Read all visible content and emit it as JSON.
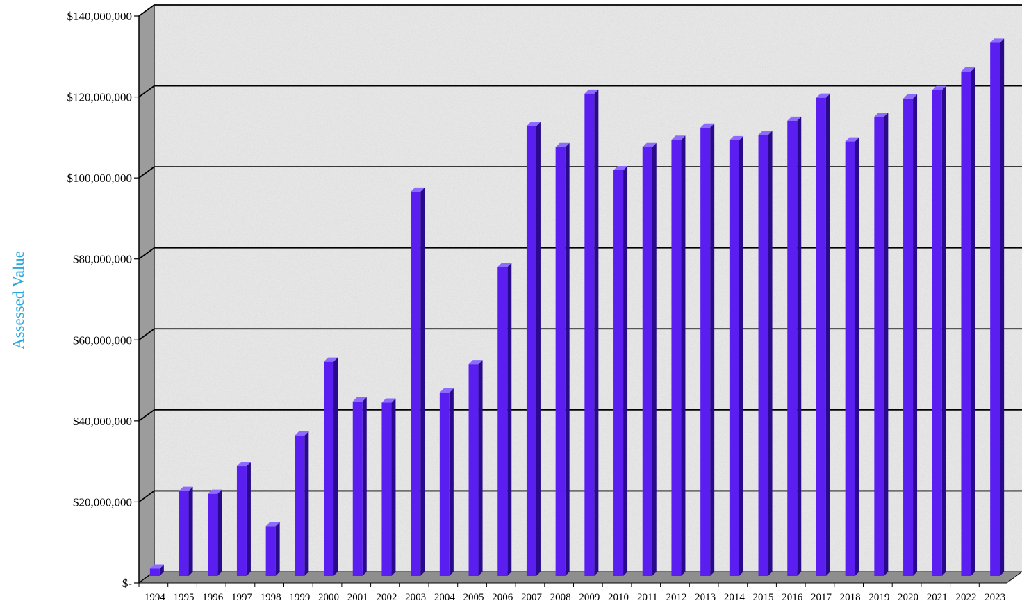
{
  "chart_data": {
    "type": "bar",
    "title": "",
    "xlabel": "",
    "ylabel": "Assessed Value",
    "ylim": [
      0,
      140000000
    ],
    "yticks": [
      {
        "value": 0,
        "label": "$-"
      },
      {
        "value": 20000000,
        "label": "$20,000,000"
      },
      {
        "value": 40000000,
        "label": "$40,000,000"
      },
      {
        "value": 60000000,
        "label": "$60,000,000"
      },
      {
        "value": 80000000,
        "label": "$80,000,000"
      },
      {
        "value": 100000000,
        "label": "$100,000,000"
      },
      {
        "value": 120000000,
        "label": "$120,000,000"
      },
      {
        "value": 140000000,
        "label": "$140,000,000"
      }
    ],
    "grid": true,
    "legend": "none",
    "categories": [
      "1994",
      "1995",
      "1996",
      "1997",
      "1998",
      "1999",
      "2000",
      "2001",
      "2002",
      "2003",
      "2004",
      "2005",
      "2006",
      "2007",
      "2008",
      "2009",
      "2010",
      "2011",
      "2012",
      "2013",
      "2014",
      "2015",
      "2016",
      "2017",
      "2018",
      "2019",
      "2020",
      "2021",
      "2022",
      "2023"
    ],
    "values": [
      1800000,
      21000000,
      20300000,
      27100000,
      12300000,
      34700000,
      52900000,
      43100000,
      42800000,
      94900000,
      45300000,
      52300000,
      76300000,
      111100000,
      105900000,
      119100000,
      100200000,
      105900000,
      107700000,
      110700000,
      107600000,
      108900000,
      112400000,
      118100000,
      107300000,
      113400000,
      117900000,
      120000000,
      124600000,
      131700000
    ]
  },
  "colors": {
    "bar_front": "#5a1ef0",
    "bar_side": "#2a0a8c",
    "bar_top": "#8c6cff",
    "ylabel": "#29a8e0",
    "gridline": "#000000",
    "wall_side": "#9c9c9c",
    "floor": "#8e8e8e"
  }
}
